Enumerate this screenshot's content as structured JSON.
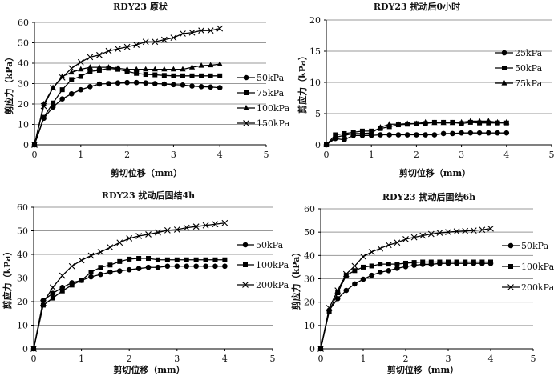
{
  "chart_data": [
    {
      "type": "line",
      "title": "RDY23 原状",
      "xlabel": "剪切位移（mm）",
      "ylabel": "剪应力（kPa）",
      "xlim": [
        0,
        5
      ],
      "ylim": [
        0,
        60
      ],
      "xticks": [
        0,
        1,
        2,
        3,
        4,
        5
      ],
      "yticks": [
        0,
        10,
        20,
        30,
        40,
        50,
        60
      ],
      "grid": "horizontal",
      "legend": "right",
      "x": [
        0,
        0.2,
        0.4,
        0.6,
        0.8,
        1,
        1.2,
        1.4,
        1.6,
        1.8,
        2,
        2.2,
        2.4,
        2.6,
        2.8,
        3,
        3.2,
        3.4,
        3.6,
        3.8,
        4
      ],
      "series": [
        {
          "name": "50kPa",
          "marker": "circle",
          "values": [
            0,
            13,
            18.5,
            22.5,
            25,
            27,
            28.5,
            29.8,
            30,
            30.3,
            30.5,
            30.5,
            30.3,
            30,
            29.8,
            29.5,
            29.3,
            28.8,
            28.5,
            28.3,
            28
          ]
        },
        {
          "name": "75kPa",
          "marker": "square",
          "values": [
            0,
            13.5,
            20.5,
            27,
            32,
            33.5,
            36,
            36.5,
            37.5,
            37,
            36,
            35,
            34.5,
            34.3,
            34,
            33.8,
            33.8,
            33.8,
            33.8,
            33.8,
            33.8
          ]
        },
        {
          "name": "100kPa",
          "marker": "triangle",
          "values": [
            0,
            20,
            28,
            33.5,
            35.5,
            37,
            38,
            38,
            38,
            37.5,
            37,
            37,
            37,
            37,
            37,
            37,
            37,
            38,
            38.8,
            39,
            39.5
          ]
        },
        {
          "name": "150kPa",
          "marker": "x",
          "values": [
            0,
            19,
            28,
            33,
            37.5,
            40.5,
            43,
            44,
            46,
            47,
            48,
            49,
            50.5,
            50.5,
            51.5,
            52.5,
            54.5,
            55,
            56,
            56,
            57
          ]
        }
      ]
    },
    {
      "type": "line",
      "title": "RDY23  扰动后0小时",
      "xlabel": "剪切位移（mm）",
      "ylabel": "剪应力（kPa）",
      "xlim": [
        0,
        5
      ],
      "ylim": [
        0,
        20
      ],
      "xticks": [
        0,
        1,
        2,
        3,
        4,
        5
      ],
      "yticks": [
        0,
        5,
        10,
        15,
        20
      ],
      "grid": "horizontal",
      "legend": "right",
      "x": [
        0,
        0.2,
        0.4,
        0.6,
        0.8,
        1,
        1.2,
        1.4,
        1.6,
        1.8,
        2,
        2.2,
        2.4,
        2.6,
        2.8,
        3,
        3.2,
        3.4,
        3.6,
        3.8,
        4
      ],
      "series": [
        {
          "name": "25kPa",
          "marker": "circle",
          "values": [
            0,
            1,
            0.8,
            1.5,
            1.5,
            1.5,
            1.6,
            1.6,
            1.6,
            1.6,
            1.6,
            1.6,
            1.6,
            1.8,
            1.8,
            1.9,
            1.9,
            1.9,
            1.9,
            1.9,
            1.9
          ]
        },
        {
          "name": "50kPa",
          "marker": "square",
          "values": [
            0,
            1.6,
            1.8,
            2,
            2.2,
            2.2,
            2.6,
            2.9,
            3.2,
            3.3,
            3.4,
            3.4,
            3.6,
            3.6,
            3.6,
            3.4,
            3.6,
            3.5,
            3.5,
            3.5,
            3.5
          ]
        },
        {
          "name": "75kPa",
          "marker": "triangle",
          "values": [
            0,
            1.2,
            1.5,
            1.8,
            1.8,
            1.9,
            2.8,
            3.3,
            3.3,
            3.4,
            3.4,
            3.6,
            3.5,
            3.5,
            3.5,
            3.6,
            3.8,
            3.8,
            3.8,
            3.6,
            3.6
          ]
        }
      ]
    },
    {
      "type": "line",
      "title": "RDY23   扰动后固结4h",
      "xlabel": "剪切位移（mm）",
      "ylabel": "剪应力（kPa）",
      "xlim": [
        0,
        5
      ],
      "ylim": [
        0,
        60
      ],
      "xticks": [
        0,
        1,
        2,
        3,
        4,
        5
      ],
      "yticks": [
        0,
        10,
        20,
        30,
        40,
        50,
        60
      ],
      "grid": "horizontal",
      "legend": "right",
      "x": [
        0,
        0.2,
        0.4,
        0.6,
        0.8,
        1,
        1.2,
        1.4,
        1.6,
        1.8,
        2,
        2.2,
        2.4,
        2.6,
        2.8,
        3,
        3.2,
        3.4,
        3.6,
        3.8,
        4
      ],
      "series": [
        {
          "name": "50kPa",
          "marker": "circle",
          "values": [
            0,
            20.5,
            23.5,
            26,
            28,
            29,
            30.5,
            31.5,
            32.5,
            33,
            33.5,
            34,
            34.5,
            34.5,
            35,
            35,
            35,
            35,
            35,
            35,
            35
          ]
        },
        {
          "name": "100kPa",
          "marker": "square",
          "values": [
            0,
            18.5,
            21.5,
            24.5,
            27,
            29,
            32.5,
            34.5,
            35.5,
            37,
            38,
            38.3,
            38.3,
            37.7,
            37.7,
            37.7,
            37.7,
            37.7,
            37.7,
            37.7,
            37.7
          ]
        },
        {
          "name": "200kPa",
          "marker": "x",
          "values": [
            0,
            19.5,
            26,
            31,
            35,
            37.5,
            39.5,
            41,
            43,
            45,
            46.8,
            47.8,
            48.5,
            49.3,
            50.2,
            50.5,
            51.3,
            51.8,
            52.3,
            52.8,
            53.3
          ]
        }
      ]
    },
    {
      "type": "line",
      "title": "RDY23   扰动后固结6h",
      "xlabel": "剪切位移（mm）",
      "ylabel": "剪应力（kPa）",
      "xlim": [
        0,
        5
      ],
      "ylim": [
        0,
        60
      ],
      "xticks": [
        0,
        1,
        2,
        3,
        4,
        5
      ],
      "yticks": [
        0,
        10,
        20,
        30,
        40,
        50,
        60
      ],
      "grid": "horizontal",
      "legend": "right",
      "x": [
        0,
        0.2,
        0.4,
        0.6,
        0.8,
        1,
        1.2,
        1.4,
        1.6,
        1.8,
        2,
        2.2,
        2.4,
        2.6,
        2.8,
        3,
        3.2,
        3.4,
        3.6,
        3.8,
        4
      ],
      "series": [
        {
          "name": "50kPa",
          "marker": "circle",
          "values": [
            0,
            16.5,
            21.5,
            25,
            27.8,
            29.8,
            31.5,
            32.8,
            33.5,
            34.5,
            35.2,
            35.8,
            36.2,
            36.2,
            36.6,
            36.6,
            36.6,
            36.6,
            36.6,
            36.6,
            36.6
          ]
        },
        {
          "name": "100kPa",
          "marker": "square",
          "values": [
            0,
            16,
            24,
            31.5,
            33.5,
            35,
            35.5,
            36.3,
            36.3,
            36.3,
            36.7,
            37,
            37.2,
            37.2,
            37.2,
            37.2,
            37.2,
            37.2,
            37.2,
            37.2,
            37.2
          ]
        },
        {
          "name": "200kPa",
          "marker": "x",
          "values": [
            0,
            17.5,
            25,
            32,
            35.5,
            39.5,
            41.5,
            43,
            44.5,
            45.5,
            47,
            47.8,
            48.5,
            49.2,
            49.7,
            50,
            50.3,
            50.5,
            50.7,
            51,
            51.5
          ]
        }
      ]
    }
  ]
}
